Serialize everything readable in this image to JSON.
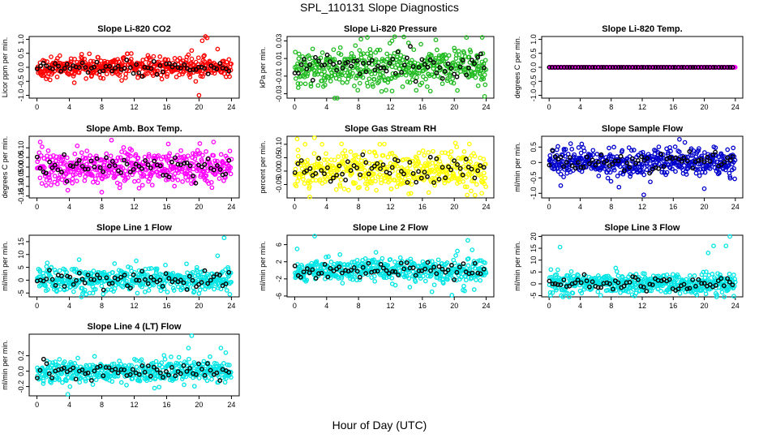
{
  "figure": {
    "title": "SPL_110131  Slope Diagnostics",
    "xlabel": "Hour of Day (UTC)"
  },
  "chart_data": [
    {
      "type": "scatter",
      "title": "Slope Li-820 CO2",
      "ylabel": "Licor ppm per min.",
      "xlim": [
        0,
        24
      ],
      "xticks": [
        0,
        4,
        8,
        12,
        16,
        20,
        24
      ],
      "ylim": [
        -1.1,
        1.1
      ],
      "yticks": [
        -1.0,
        -0.5,
        0.0,
        0.5,
        1.0
      ],
      "yticklabels": [
        "-1.0",
        "-0.5",
        "0.0",
        "0.5",
        "1.0"
      ],
      "color": "#ff0000",
      "hour_marker_color": "#000000",
      "spread": 0.18,
      "outliers": [
        [
          18.7,
          0.45
        ],
        [
          19.1,
          0.6
        ],
        [
          19.6,
          -0.5
        ],
        [
          20.4,
          0.95
        ],
        [
          20.8,
          1.1
        ],
        [
          21.0,
          1.05
        ],
        [
          20.0,
          -1.0
        ],
        [
          4.6,
          -0.55
        ],
        [
          22.3,
          0.65
        ]
      ]
    },
    {
      "type": "scatter",
      "title": "Slope Li-820 Pressure",
      "ylabel": "kPa per min.",
      "xlim": [
        0,
        24
      ],
      "xticks": [
        0,
        4,
        8,
        12,
        16,
        20,
        24
      ],
      "ylim": [
        -0.035,
        0.035
      ],
      "yticks": [
        -0.03,
        -0.01,
        0.01,
        0.03
      ],
      "yticklabels": [
        "-0.03",
        "-0.01",
        "0.01",
        "0.03"
      ],
      "color": "#22bb22",
      "hour_marker_color": "#000000",
      "spread": 0.011,
      "outliers": [
        [
          7.9,
          -0.026
        ],
        [
          8.3,
          0.032
        ],
        [
          9.1,
          0.034
        ],
        [
          17.0,
          -0.027
        ],
        [
          23.8,
          -0.033
        ],
        [
          23.5,
          0.034
        ],
        [
          3.8,
          -0.02
        ],
        [
          12.2,
          0.03
        ]
      ]
    },
    {
      "type": "scatter",
      "title": "Slope Li-820 Temp.",
      "ylabel": "degrees C per min.",
      "xlim": [
        0,
        24
      ],
      "xticks": [
        0,
        4,
        8,
        12,
        16,
        20,
        24
      ],
      "ylim": [
        -1.1,
        1.1
      ],
      "yticks": [
        -1.0,
        -0.5,
        0.0,
        0.5,
        1.0
      ],
      "yticklabels": [
        "-1.0",
        "-0.5",
        "0.0",
        "0.5",
        "1.0"
      ],
      "color": "#ff00ff",
      "hour_marker_color": "#000000",
      "spread": 0.0,
      "outliers": []
    },
    {
      "type": "scatter",
      "title": "Slope Amb. Box Temp.",
      "ylabel": "degrees C per min.",
      "xlim": [
        0,
        24
      ],
      "xticks": [
        0,
        4,
        8,
        12,
        16,
        20,
        24
      ],
      "ylim": [
        -0.16,
        0.16
      ],
      "yticks": [
        -0.15,
        -0.1,
        -0.05,
        0.0,
        0.05,
        0.1
      ],
      "yticklabels": [
        "-0.15",
        "-0.10",
        "-0.05",
        "0.00",
        "0.05",
        "0.10"
      ],
      "color": "#ff00ff",
      "hour_marker_color": "#000000",
      "spread": 0.045,
      "outliers": [
        [
          8.0,
          -0.13
        ],
        [
          3.8,
          -0.12
        ],
        [
          9.2,
          0.14
        ],
        [
          21.8,
          0.13
        ],
        [
          16.2,
          0.12
        ],
        [
          0.4,
          0.13
        ]
      ]
    },
    {
      "type": "scatter",
      "title": "Slope Gas Stream RH",
      "ylabel": "percent per min.",
      "xlim": [
        0,
        24
      ],
      "xticks": [
        0,
        4,
        8,
        12,
        16,
        20,
        24
      ],
      "ylim": [
        -0.1,
        0.13
      ],
      "yticks": [
        -0.05,
        0.0,
        0.05,
        0.1
      ],
      "yticklabels": [
        "-0.05",
        "0.00",
        "0.05",
        "0.10"
      ],
      "color": "#ffff00",
      "hour_marker_color": "#000000",
      "spread": 0.035,
      "outliers": [
        [
          0.3,
          0.12
        ],
        [
          1.3,
          0.1
        ],
        [
          20.3,
          0.09
        ],
        [
          14.3,
          -0.085
        ],
        [
          16.8,
          -0.08
        ],
        [
          22.6,
          -0.09
        ]
      ]
    },
    {
      "type": "scatter",
      "title": "Slope Sample Flow",
      "ylabel": "ml/min per min.",
      "xlim": [
        0,
        24
      ],
      "xticks": [
        0,
        4,
        8,
        12,
        16,
        20,
        24
      ],
      "ylim": [
        -1.15,
        0.85
      ],
      "yticks": [
        -1.0,
        -0.5,
        0.0,
        0.5
      ],
      "yticklabels": [
        "-1.0",
        "-0.5",
        "0",
        "0.5"
      ],
      "color": "#0000cc",
      "hour_marker_color": "#000000",
      "spread": 0.22,
      "outliers": [
        [
          12.2,
          -1.05
        ],
        [
          16.8,
          0.75
        ],
        [
          1.5,
          -0.75
        ],
        [
          9.0,
          -0.8
        ],
        [
          20.0,
          -0.85
        ],
        [
          4.2,
          0.6
        ]
      ]
    },
    {
      "type": "scatter",
      "title": "Slope Line 1 Flow",
      "ylabel": "ml/min per min.",
      "xlim": [
        0,
        24
      ],
      "xticks": [
        0,
        4,
        8,
        12,
        16,
        20,
        24
      ],
      "ylim": [
        -6.5,
        17.5
      ],
      "yticks": [
        -5,
        0,
        5,
        10,
        15
      ],
      "yticklabels": [
        "-5",
        "0",
        "5",
        "10",
        "15"
      ],
      "color": "#00e5e5",
      "hour_marker_color": "#000000",
      "spread": 2.4,
      "outliers": [
        [
          23.1,
          16.5
        ],
        [
          23.8,
          -5.5
        ],
        [
          22.3,
          9.5
        ],
        [
          2.4,
          -4.0
        ],
        [
          5.2,
          8.0
        ]
      ]
    },
    {
      "type": "scatter",
      "title": "Slope Line 2 Flow",
      "ylabel": "ml/min per min.",
      "xlim": [
        0,
        24
      ],
      "xticks": [
        0,
        4,
        8,
        12,
        16,
        20,
        24
      ],
      "ylim": [
        -6.2,
        8.2
      ],
      "yticks": [
        -6,
        -2,
        2,
        6
      ],
      "yticklabels": [
        "-6",
        "-2",
        "2",
        "6"
      ],
      "color": "#00e5e5",
      "hour_marker_color": "#000000",
      "spread": 1.3,
      "outliers": [
        [
          2.5,
          8.0
        ],
        [
          0.3,
          5.0
        ],
        [
          21.7,
          7.0
        ],
        [
          20.4,
          4.5
        ],
        [
          19.7,
          -5.8
        ],
        [
          17.2,
          -5.0
        ],
        [
          22.5,
          -4.5
        ],
        [
          21.3,
          -4.8
        ]
      ]
    },
    {
      "type": "scatter",
      "title": "Slope Line 3 Flow",
      "ylabel": "ml/min per min.",
      "xlim": [
        0,
        24
      ],
      "xticks": [
        0,
        4,
        8,
        12,
        16,
        20,
        24
      ],
      "ylim": [
        -5.5,
        20.5
      ],
      "yticks": [
        -5,
        0,
        5,
        10,
        15,
        20
      ],
      "yticklabels": [
        "-5",
        "0",
        "5",
        "10",
        "15",
        "20"
      ],
      "color": "#00e5e5",
      "hour_marker_color": "#000000",
      "spread": 2.2,
      "outliers": [
        [
          1.4,
          15.5
        ],
        [
          21.2,
          16.0
        ],
        [
          23.3,
          20.0
        ],
        [
          22.8,
          16.0
        ],
        [
          20.5,
          13.0
        ],
        [
          23.8,
          -5.2
        ],
        [
          22.3,
          -3.5
        ],
        [
          4.0,
          -3.0
        ]
      ]
    },
    {
      "type": "scatter",
      "title": "Slope Line 4 (LT) Flow",
      "ylabel": "ml/min per min.",
      "xlim": [
        0,
        24
      ],
      "xticks": [
        0,
        4,
        8,
        12,
        16,
        20,
        24
      ],
      "ylim": [
        -0.32,
        0.48
      ],
      "yticks": [
        -0.2,
        0.0,
        0.2
      ],
      "yticklabels": [
        "-0.2",
        "0.0",
        "0.2"
      ],
      "color": "#00e5e5",
      "hour_marker_color": "#000000",
      "spread": 0.075,
      "outliers": [
        [
          19.1,
          0.46
        ],
        [
          18.7,
          0.3
        ],
        [
          22.7,
          0.3
        ],
        [
          23.3,
          0.24
        ],
        [
          3.8,
          -0.3
        ],
        [
          14.5,
          -0.22
        ]
      ]
    }
  ]
}
